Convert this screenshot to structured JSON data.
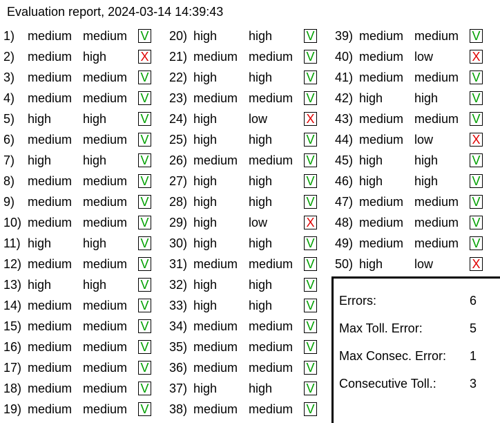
{
  "report": {
    "title": "Evaluation report, 2024-03-14 14:39:43"
  },
  "columns": [
    [
      {
        "n": "1)",
        "expected": "medium",
        "got": "medium",
        "mark": "V",
        "ok": true
      },
      {
        "n": "2)",
        "expected": "medium",
        "got": "high",
        "mark": "X",
        "ok": false
      },
      {
        "n": "3)",
        "expected": "medium",
        "got": "medium",
        "mark": "V",
        "ok": true
      },
      {
        "n": "4)",
        "expected": "medium",
        "got": "medium",
        "mark": "V",
        "ok": true
      },
      {
        "n": "5)",
        "expected": "high",
        "got": "high",
        "mark": "V",
        "ok": true
      },
      {
        "n": "6)",
        "expected": "medium",
        "got": "medium",
        "mark": "V",
        "ok": true
      },
      {
        "n": "7)",
        "expected": "high",
        "got": "high",
        "mark": "V",
        "ok": true
      },
      {
        "n": "8)",
        "expected": "medium",
        "got": "medium",
        "mark": "V",
        "ok": true
      },
      {
        "n": "9)",
        "expected": "medium",
        "got": "medium",
        "mark": "V",
        "ok": true
      },
      {
        "n": "10)",
        "expected": "medium",
        "got": "medium",
        "mark": "V",
        "ok": true
      },
      {
        "n": "11)",
        "expected": "high",
        "got": "high",
        "mark": "V",
        "ok": true
      },
      {
        "n": "12)",
        "expected": "medium",
        "got": "medium",
        "mark": "V",
        "ok": true
      },
      {
        "n": "13)",
        "expected": "high",
        "got": "high",
        "mark": "V",
        "ok": true
      },
      {
        "n": "14)",
        "expected": "medium",
        "got": "medium",
        "mark": "V",
        "ok": true
      },
      {
        "n": "15)",
        "expected": "medium",
        "got": "medium",
        "mark": "V",
        "ok": true
      },
      {
        "n": "16)",
        "expected": "medium",
        "got": "medium",
        "mark": "V",
        "ok": true
      },
      {
        "n": "17)",
        "expected": "medium",
        "got": "medium",
        "mark": "V",
        "ok": true
      },
      {
        "n": "18)",
        "expected": "medium",
        "got": "medium",
        "mark": "V",
        "ok": true
      },
      {
        "n": "19)",
        "expected": "medium",
        "got": "medium",
        "mark": "V",
        "ok": true
      }
    ],
    [
      {
        "n": "20)",
        "expected": "high",
        "got": "high",
        "mark": "V",
        "ok": true
      },
      {
        "n": "21)",
        "expected": "medium",
        "got": "medium",
        "mark": "V",
        "ok": true
      },
      {
        "n": "22)",
        "expected": "high",
        "got": "high",
        "mark": "V",
        "ok": true
      },
      {
        "n": "23)",
        "expected": "medium",
        "got": "medium",
        "mark": "V",
        "ok": true
      },
      {
        "n": "24)",
        "expected": "high",
        "got": "low",
        "mark": "X",
        "ok": false
      },
      {
        "n": "25)",
        "expected": "high",
        "got": "high",
        "mark": "V",
        "ok": true
      },
      {
        "n": "26)",
        "expected": "medium",
        "got": "medium",
        "mark": "V",
        "ok": true
      },
      {
        "n": "27)",
        "expected": "high",
        "got": "high",
        "mark": "V",
        "ok": true
      },
      {
        "n": "28)",
        "expected": "high",
        "got": "high",
        "mark": "V",
        "ok": true
      },
      {
        "n": "29)",
        "expected": "high",
        "got": "low",
        "mark": "X",
        "ok": false
      },
      {
        "n": "30)",
        "expected": "high",
        "got": "high",
        "mark": "V",
        "ok": true
      },
      {
        "n": "31)",
        "expected": "medium",
        "got": "medium",
        "mark": "V",
        "ok": true
      },
      {
        "n": "32)",
        "expected": "high",
        "got": "high",
        "mark": "V",
        "ok": true
      },
      {
        "n": "33)",
        "expected": "high",
        "got": "high",
        "mark": "V",
        "ok": true
      },
      {
        "n": "34)",
        "expected": "medium",
        "got": "medium",
        "mark": "V",
        "ok": true
      },
      {
        "n": "35)",
        "expected": "medium",
        "got": "medium",
        "mark": "V",
        "ok": true
      },
      {
        "n": "36)",
        "expected": "medium",
        "got": "medium",
        "mark": "V",
        "ok": true
      },
      {
        "n": "37)",
        "expected": "high",
        "got": "high",
        "mark": "V",
        "ok": true
      },
      {
        "n": "38)",
        "expected": "medium",
        "got": "medium",
        "mark": "V",
        "ok": true
      }
    ],
    [
      {
        "n": "39)",
        "expected": "medium",
        "got": "medium",
        "mark": "V",
        "ok": true
      },
      {
        "n": "40)",
        "expected": "medium",
        "got": "low",
        "mark": "X",
        "ok": false
      },
      {
        "n": "41)",
        "expected": "medium",
        "got": "medium",
        "mark": "V",
        "ok": true
      },
      {
        "n": "42)",
        "expected": "high",
        "got": "high",
        "mark": "V",
        "ok": true
      },
      {
        "n": "43)",
        "expected": "medium",
        "got": "medium",
        "mark": "V",
        "ok": true
      },
      {
        "n": "44)",
        "expected": "medium",
        "got": "low",
        "mark": "X",
        "ok": false
      },
      {
        "n": "45)",
        "expected": "high",
        "got": "high",
        "mark": "V",
        "ok": true
      },
      {
        "n": "46)",
        "expected": "high",
        "got": "high",
        "mark": "V",
        "ok": true
      },
      {
        "n": "47)",
        "expected": "medium",
        "got": "medium",
        "mark": "V",
        "ok": true
      },
      {
        "n": "48)",
        "expected": "medium",
        "got": "medium",
        "mark": "V",
        "ok": true
      },
      {
        "n": "49)",
        "expected": "medium",
        "got": "medium",
        "mark": "V",
        "ok": true
      },
      {
        "n": "50)",
        "expected": "high",
        "got": "low",
        "mark": "X",
        "ok": false
      }
    ]
  ],
  "summary": {
    "errors_label": "Errors:",
    "errors_value": "6",
    "max_toll_label": "Max Toll. Error:",
    "max_toll_value": "5",
    "max_consec_label": "Max Consec. Error:",
    "max_consec_value": "1",
    "consec_toll_label": "Consecutive Toll.:",
    "consec_toll_value": "3"
  },
  "colors": {
    "ok": "#00a000",
    "error": "#e00000"
  }
}
